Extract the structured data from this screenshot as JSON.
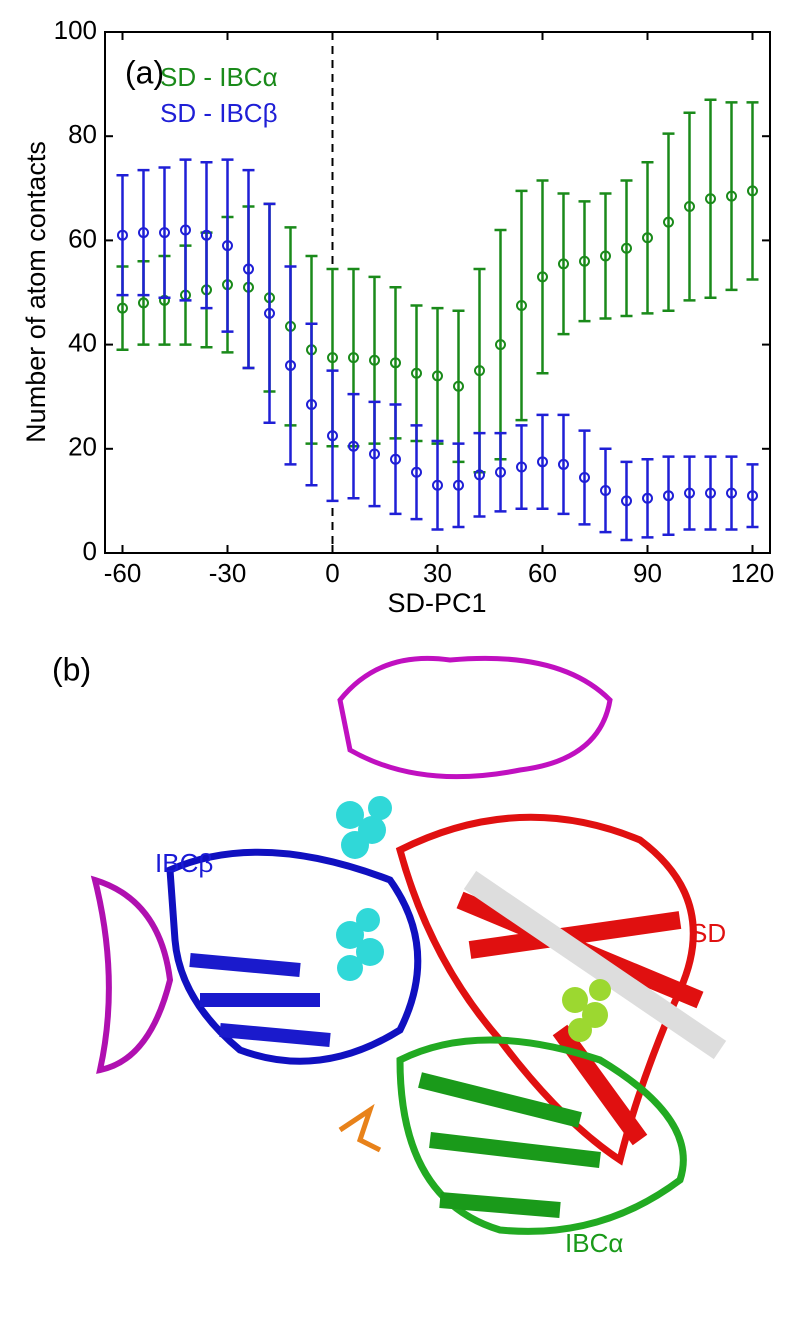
{
  "chart_data": {
    "type": "errorbar",
    "panel_label": "(a)",
    "x_label": "SD-PC1",
    "y_label": "Number of atom contacts",
    "xlim": [
      -65,
      125
    ],
    "ylim": [
      0,
      100
    ],
    "xticks": [
      -60,
      -30,
      0,
      30,
      60,
      90,
      120
    ],
    "yticks": [
      0,
      20,
      40,
      60,
      80,
      100
    ],
    "vline": 0,
    "x": [
      -60,
      -54,
      -48,
      -42,
      -36,
      -30,
      -24,
      -18,
      -12,
      -6,
      0,
      6,
      12,
      18,
      24,
      30,
      36,
      42,
      48,
      54,
      60,
      66,
      72,
      78,
      84,
      90,
      96,
      102,
      108,
      114,
      120
    ],
    "series": [
      {
        "name": "SD - IBCα",
        "color": "#1a8a1a",
        "values": [
          47,
          48,
          48.5,
          49.5,
          50.5,
          51.5,
          51,
          49,
          43.5,
          39,
          37.5,
          37.5,
          37,
          36.5,
          34.5,
          34,
          32,
          35,
          40,
          47.5,
          53,
          55.5,
          56,
          57,
          58.5,
          60.5,
          63.5,
          66.5,
          68,
          68.5,
          69.5
        ],
        "errors": [
          8,
          8,
          8.5,
          9.5,
          11,
          13,
          15.5,
          18,
          19,
          18,
          17,
          17,
          16,
          14.5,
          13,
          13,
          14.5,
          19.5,
          22,
          22,
          18.5,
          13.5,
          11.5,
          12,
          13,
          14.5,
          17,
          18,
          19,
          18,
          17
        ]
      },
      {
        "name": "SD - IBCβ",
        "color": "#1f1fd6",
        "values": [
          61,
          61.5,
          61.5,
          62,
          61,
          59,
          54.5,
          46,
          36,
          28.5,
          22.5,
          20.5,
          19,
          18,
          15.5,
          13,
          13,
          15,
          15.5,
          16.5,
          17.5,
          17,
          14.5,
          12,
          10,
          10.5,
          11,
          11.5,
          11.5,
          11.5,
          11
        ],
        "errors": [
          11.5,
          12,
          12.5,
          13.5,
          14,
          16.5,
          19,
          21,
          19,
          15.5,
          12.5,
          10,
          10,
          10.5,
          9,
          8.5,
          8,
          8,
          7.5,
          8,
          9,
          9.5,
          9,
          8,
          7.5,
          7.5,
          7.5,
          7,
          7,
          7,
          6
        ]
      }
    ]
  },
  "image": {
    "panel_label": "(b)",
    "labels": [
      "IBCβ",
      "SD",
      "IBCα"
    ]
  }
}
